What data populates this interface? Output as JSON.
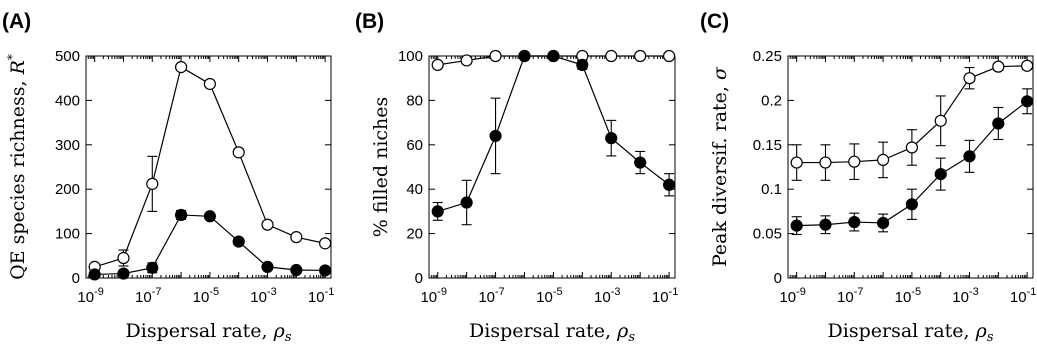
{
  "chart_data": [
    {
      "type": "line",
      "panel_label": "(A)",
      "xlabel": "Dispersal rate, ",
      "xlabel_symbol": "ρ",
      "xlabel_sub": "s",
      "ylabel": "QE species richness, ",
      "ylabel_symbol": "R",
      "ylabel_sup": "*",
      "xscale": "log",
      "x": [
        1e-09,
        1e-08,
        1e-07,
        1e-06,
        1e-05,
        0.0001,
        0.001,
        0.01,
        0.1
      ],
      "xlim": [
        5e-10,
        0.16
      ],
      "ylim": [
        0,
        500
      ],
      "xticks": [
        1e-09,
        1e-07,
        1e-05,
        0.001,
        0.1
      ],
      "xtick_labels": [
        [
          "10",
          "-9"
        ],
        [
          "10",
          "-7"
        ],
        [
          "10",
          "-5"
        ],
        [
          "10",
          "-3"
        ],
        [
          "10",
          "-1"
        ]
      ],
      "yticks": [
        0,
        100,
        200,
        300,
        400,
        500
      ],
      "ytick_labels": [
        "0",
        "100",
        "200",
        "300",
        "400",
        "500"
      ],
      "series": [
        {
          "marker": "open",
          "values": [
            25,
            45,
            212,
            475,
            437,
            283,
            120,
            92,
            78
          ],
          "errors": [
            7,
            18,
            62,
            5,
            6,
            8,
            5,
            4,
            6
          ]
        },
        {
          "marker": "filled",
          "values": [
            8,
            10,
            23,
            142,
            139,
            82,
            25,
            18,
            17
          ],
          "errors": [
            3,
            6,
            11,
            10,
            6,
            7,
            4,
            3,
            3
          ]
        }
      ]
    },
    {
      "type": "line",
      "panel_label": "(B)",
      "xlabel": "Dispersal rate, ",
      "xlabel_symbol": "ρ",
      "xlabel_sub": "s",
      "ylabel": "% filled niches",
      "ylabel_symbol": "",
      "ylabel_sup": "",
      "xscale": "log",
      "x": [
        1e-09,
        1e-08,
        1e-07,
        1e-06,
        1e-05,
        0.0001,
        0.001,
        0.01,
        0.1
      ],
      "xlim": [
        5e-10,
        0.16
      ],
      "ylim": [
        0,
        100
      ],
      "xticks": [
        1e-09,
        1e-07,
        1e-05,
        0.001,
        0.1
      ],
      "xtick_labels": [
        [
          "10",
          "-9"
        ],
        [
          "10",
          "-7"
        ],
        [
          "10",
          "-5"
        ],
        [
          "10",
          "-3"
        ],
        [
          "10",
          "-1"
        ]
      ],
      "yticks": [
        0,
        20,
        40,
        60,
        80,
        100
      ],
      "ytick_labels": [
        "0",
        "20",
        "40",
        "60",
        "80",
        "100"
      ],
      "series": [
        {
          "marker": "open",
          "values": [
            96,
            98,
            100,
            100,
            100,
            100,
            100,
            100,
            100
          ],
          "errors": [
            1.5,
            1.5,
            0.5,
            0.5,
            0.5,
            0.5,
            0.5,
            0.5,
            0.5
          ]
        },
        {
          "marker": "filled",
          "values": [
            30,
            34,
            64,
            100,
            100,
            96,
            63,
            52,
            42
          ],
          "errors": [
            4,
            10,
            17,
            0.5,
            0.5,
            2,
            8,
            5,
            5
          ]
        }
      ]
    },
    {
      "type": "line",
      "panel_label": "(C)",
      "xlabel": "Dispersal rate, ",
      "xlabel_symbol": "ρ",
      "xlabel_sub": "s",
      "ylabel": "Peak diversif. rate, ",
      "ylabel_symbol": "σ",
      "ylabel_sup": "",
      "xscale": "log",
      "x": [
        1e-09,
        1e-08,
        1e-07,
        1e-06,
        1e-05,
        0.0001,
        0.001,
        0.01,
        0.1
      ],
      "xlim": [
        5e-10,
        0.16
      ],
      "ylim": [
        0,
        0.25
      ],
      "xticks": [
        1e-09,
        1e-07,
        1e-05,
        0.001,
        0.1
      ],
      "xtick_labels": [
        [
          "10",
          "-9"
        ],
        [
          "10",
          "-7"
        ],
        [
          "10",
          "-5"
        ],
        [
          "10",
          "-3"
        ],
        [
          "10",
          "-1"
        ]
      ],
      "yticks": [
        0,
        0.05,
        0.1,
        0.15,
        0.2,
        0.25
      ],
      "ytick_labels": [
        "0",
        "0.05",
        "0.1",
        "0.15",
        "0.2",
        "0.25"
      ],
      "series": [
        {
          "marker": "open",
          "values": [
            0.13,
            0.13,
            0.131,
            0.133,
            0.147,
            0.177,
            0.225,
            0.238,
            0.239
          ],
          "errors": [
            0.02,
            0.02,
            0.02,
            0.02,
            0.02,
            0.028,
            0.012,
            0.004,
            0.004
          ]
        },
        {
          "marker": "filled",
          "values": [
            0.059,
            0.06,
            0.063,
            0.062,
            0.083,
            0.117,
            0.137,
            0.174,
            0.199
          ],
          "errors": [
            0.01,
            0.01,
            0.01,
            0.01,
            0.017,
            0.018,
            0.018,
            0.018,
            0.014
          ]
        }
      ]
    }
  ]
}
